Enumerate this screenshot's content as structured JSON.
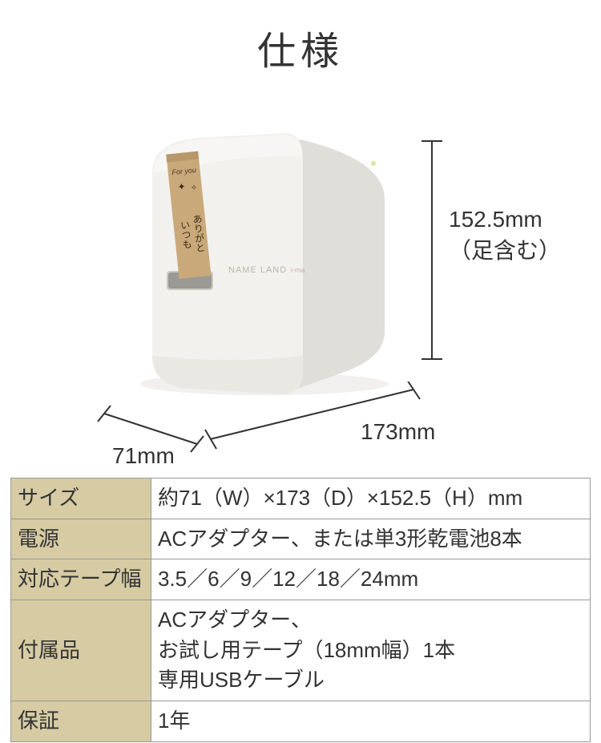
{
  "title": "仕様",
  "diagram": {
    "height_label": "152.5mm\n（足含む）",
    "depth_label": "173mm",
    "width_label": "71mm",
    "device_color": "#f0efec",
    "device_shadow": "#d8d6d2",
    "tape_color": "#c9a97a",
    "brand_text": "NAME LAND i-ma",
    "line_color": "#333333"
  },
  "table": {
    "header_bg": "#d6cba3",
    "border_color": "#999999",
    "font_size": 26,
    "rows": [
      {
        "label": "サイズ",
        "value": "約71（W）×173（D）×152.5（H）mm"
      },
      {
        "label": "電源",
        "value": "ACアダプター、または単3形乾電池8本"
      },
      {
        "label": "対応テープ幅",
        "value": "3.5／6／9／12／18／24mm"
      },
      {
        "label": "付属品",
        "value": "ACアダプター、\nお試し用テープ（18mm幅）1本\n専用USBケーブル"
      },
      {
        "label": "保証",
        "value": "1年"
      }
    ]
  }
}
